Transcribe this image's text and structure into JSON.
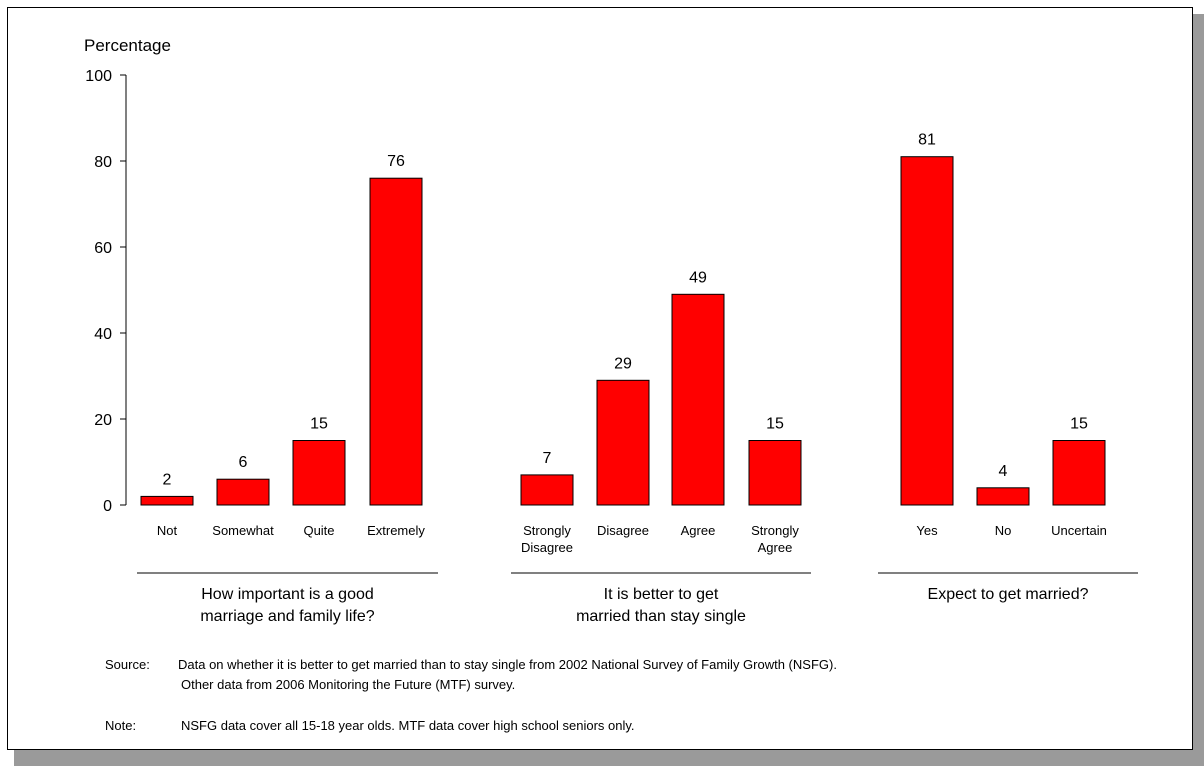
{
  "chart_data": {
    "type": "bar",
    "ylabel": "Percentage",
    "ylim": [
      0,
      100
    ],
    "yticks": [
      0,
      20,
      40,
      60,
      80,
      100
    ],
    "bar_color": "#ff0000",
    "groups": [
      {
        "label": [
          "How important is a good",
          "marriage and family life?"
        ],
        "categories": [
          [
            "Not"
          ],
          [
            "Somewhat"
          ],
          [
            "Quite"
          ],
          [
            "Extremely"
          ]
        ],
        "values": [
          2,
          6,
          15,
          76
        ]
      },
      {
        "label": [
          "It is better to get",
          "married than stay single"
        ],
        "categories": [
          [
            "Strongly",
            "Disagree"
          ],
          [
            "Disagree"
          ],
          [
            "Agree"
          ],
          [
            "Strongly",
            "Agree"
          ]
        ],
        "values": [
          7,
          29,
          49,
          15
        ]
      },
      {
        "label": [
          "Expect to get married?"
        ],
        "categories": [
          [
            "Yes"
          ],
          [
            "No"
          ],
          [
            "Uncertain"
          ]
        ],
        "values": [
          81,
          4,
          15
        ]
      }
    ]
  },
  "notes": {
    "source_label": "Source:",
    "source_line1": "Data on whether it is better to get married than to stay single from 2002 National Survey of Family Growth (NSFG).",
    "source_line2": "Other data from 2006 Monitoring the Future (MTF) survey.",
    "note_label": "Note:",
    "note_text": "NSFG data cover all 15-18 year olds. MTF data cover high school seniors only."
  }
}
